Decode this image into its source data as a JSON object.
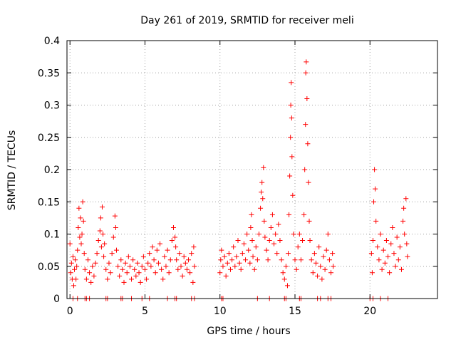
{
  "chart_data": {
    "type": "scatter",
    "title": "Day 261 of 2019, SRMTID for receiver meli",
    "xlabel": "GPS time / hours",
    "ylabel": "SRMTID / TECUs",
    "xlim": [
      -0.2,
      24.5
    ],
    "ylim": [
      0,
      0.4
    ],
    "xticks": [
      0,
      5,
      10,
      15,
      20
    ],
    "xtick_labels": [
      "0",
      "5",
      "10",
      "15",
      "20"
    ],
    "yticks": [
      0,
      0.05,
      0.1,
      0.15,
      0.2,
      0.25,
      0.3,
      0.35,
      0.4
    ],
    "ytick_labels": [
      "0",
      "0.05",
      "0.1",
      "0.15",
      "0.2",
      "0.25",
      "0.3",
      "0.35",
      "0.4"
    ],
    "grid": true,
    "marker": "plus",
    "colors": {
      "series": "#ff0000",
      "grid": "#a0a0a0",
      "axis": "#000000"
    },
    "series": [
      {
        "name": "SRMTID",
        "points": [
          [
            0.0,
            0.085
          ],
          [
            0.05,
            0.04
          ],
          [
            0.1,
            0.055
          ],
          [
            0.15,
            0.03
          ],
          [
            0.2,
            0.065
          ],
          [
            0.25,
            0.02
          ],
          [
            0.3,
            0.045
          ],
          [
            0.35,
            0.06
          ],
          [
            0.4,
            0.03
          ],
          [
            0.45,
            0.05
          ],
          [
            0.5,
            0.075
          ],
          [
            0.55,
            0.11
          ],
          [
            0.6,
            0.14
          ],
          [
            0.65,
            0.095
          ],
          [
            0.7,
            0.125
          ],
          [
            0.75,
            0.085
          ],
          [
            0.8,
            0.1
          ],
          [
            0.85,
            0.15
          ],
          [
            0.9,
            0.12
          ],
          [
            0.95,
            0.07
          ],
          [
            1.0,
            0.045
          ],
          [
            1.1,
            0.03
          ],
          [
            1.2,
            0.06
          ],
          [
            1.3,
            0.04
          ],
          [
            1.4,
            0.025
          ],
          [
            1.5,
            0.05
          ],
          [
            1.6,
            0.035
          ],
          [
            1.7,
            0.055
          ],
          [
            1.8,
            0.07
          ],
          [
            1.9,
            0.09
          ],
          [
            2.0,
            0.105
          ],
          [
            2.05,
            0.125
          ],
          [
            2.1,
            0.08
          ],
          [
            2.15,
            0.142
          ],
          [
            2.2,
            0.1
          ],
          [
            2.25,
            0.065
          ],
          [
            2.3,
            0.085
          ],
          [
            2.4,
            0.045
          ],
          [
            2.5,
            0.03
          ],
          [
            2.6,
            0.055
          ],
          [
            2.7,
            0.04
          ],
          [
            2.8,
            0.07
          ],
          [
            2.9,
            0.095
          ],
          [
            3.0,
            0.128
          ],
          [
            3.05,
            0.11
          ],
          [
            3.1,
            0.075
          ],
          [
            3.2,
            0.05
          ],
          [
            3.3,
            0.035
          ],
          [
            3.4,
            0.06
          ],
          [
            3.5,
            0.045
          ],
          [
            3.6,
            0.025
          ],
          [
            3.7,
            0.055
          ],
          [
            3.8,
            0.04
          ],
          [
            3.9,
            0.065
          ],
          [
            4.0,
            0.05
          ],
          [
            4.1,
            0.03
          ],
          [
            4.2,
            0.06
          ],
          [
            4.3,
            0.045
          ],
          [
            4.4,
            0.035
          ],
          [
            4.5,
            0.055
          ],
          [
            4.6,
            0.04
          ],
          [
            4.7,
            0.025
          ],
          [
            4.8,
            0.05
          ],
          [
            4.9,
            0.065
          ],
          [
            5.0,
            0.045
          ],
          [
            5.1,
            0.03
          ],
          [
            5.2,
            0.055
          ],
          [
            5.3,
            0.07
          ],
          [
            5.4,
            0.05
          ],
          [
            5.5,
            0.08
          ],
          [
            5.6,
            0.06
          ],
          [
            5.7,
            0.04
          ],
          [
            5.8,
            0.075
          ],
          [
            5.9,
            0.055
          ],
          [
            6.0,
            0.085
          ],
          [
            6.1,
            0.045
          ],
          [
            6.2,
            0.03
          ],
          [
            6.3,
            0.065
          ],
          [
            6.4,
            0.05
          ],
          [
            6.5,
            0.075
          ],
          [
            6.6,
            0.04
          ],
          [
            6.7,
            0.06
          ],
          [
            6.8,
            0.09
          ],
          [
            6.9,
            0.11
          ],
          [
            7.0,
            0.095
          ],
          [
            7.05,
            0.08
          ],
          [
            7.1,
            0.06
          ],
          [
            7.2,
            0.045
          ],
          [
            7.3,
            0.07
          ],
          [
            7.4,
            0.05
          ],
          [
            7.5,
            0.035
          ],
          [
            7.6,
            0.065
          ],
          [
            7.7,
            0.055
          ],
          [
            7.8,
            0.045
          ],
          [
            7.9,
            0.06
          ],
          [
            8.0,
            0.04
          ],
          [
            8.1,
            0.07
          ],
          [
            8.2,
            0.025
          ],
          [
            8.25,
            0.08
          ],
          [
            8.3,
            0.05
          ],
          [
            10.0,
            0.04
          ],
          [
            10.05,
            0.06
          ],
          [
            10.1,
            0.075
          ],
          [
            10.2,
            0.05
          ],
          [
            10.3,
            0.065
          ],
          [
            10.4,
            0.035
          ],
          [
            10.5,
            0.055
          ],
          [
            10.6,
            0.07
          ],
          [
            10.7,
            0.045
          ],
          [
            10.8,
            0.06
          ],
          [
            10.9,
            0.08
          ],
          [
            11.0,
            0.05
          ],
          [
            11.1,
            0.065
          ],
          [
            11.2,
            0.09
          ],
          [
            11.3,
            0.055
          ],
          [
            11.4,
            0.045
          ],
          [
            11.5,
            0.07
          ],
          [
            11.6,
            0.085
          ],
          [
            11.7,
            0.06
          ],
          [
            11.8,
            0.1
          ],
          [
            11.9,
            0.075
          ],
          [
            12.0,
            0.055
          ],
          [
            12.05,
            0.11
          ],
          [
            12.1,
            0.13
          ],
          [
            12.15,
            0.09
          ],
          [
            12.2,
            0.065
          ],
          [
            12.3,
            0.045
          ],
          [
            12.4,
            0.08
          ],
          [
            12.5,
            0.06
          ],
          [
            12.6,
            0.1
          ],
          [
            12.7,
            0.14
          ],
          [
            12.75,
            0.165
          ],
          [
            12.8,
            0.18
          ],
          [
            12.85,
            0.155
          ],
          [
            12.9,
            0.203
          ],
          [
            12.95,
            0.12
          ],
          [
            13.0,
            0.095
          ],
          [
            13.1,
            0.075
          ],
          [
            13.2,
            0.06
          ],
          [
            13.3,
            0.09
          ],
          [
            13.4,
            0.11
          ],
          [
            13.5,
            0.13
          ],
          [
            13.6,
            0.085
          ],
          [
            13.7,
            0.1
          ],
          [
            13.8,
            0.07
          ],
          [
            13.9,
            0.115
          ],
          [
            14.0,
            0.09
          ],
          [
            14.1,
            0.06
          ],
          [
            14.2,
            0.04
          ],
          [
            14.3,
            0.03
          ],
          [
            14.4,
            0.05
          ],
          [
            14.5,
            0.02
          ],
          [
            14.55,
            0.07
          ],
          [
            14.6,
            0.13
          ],
          [
            14.65,
            0.19
          ],
          [
            14.7,
            0.25
          ],
          [
            14.72,
            0.3
          ],
          [
            14.75,
            0.335
          ],
          [
            14.78,
            0.28
          ],
          [
            14.8,
            0.22
          ],
          [
            14.85,
            0.16
          ],
          [
            14.9,
            0.1
          ],
          [
            15.0,
            0.06
          ],
          [
            15.1,
            0.045
          ],
          [
            15.2,
            0.08
          ],
          [
            15.3,
            0.1
          ],
          [
            15.4,
            0.06
          ],
          [
            15.5,
            0.09
          ],
          [
            15.6,
            0.13
          ],
          [
            15.65,
            0.2
          ],
          [
            15.7,
            0.27
          ],
          [
            15.72,
            0.35
          ],
          [
            15.75,
            0.367
          ],
          [
            15.8,
            0.31
          ],
          [
            15.85,
            0.24
          ],
          [
            15.9,
            0.18
          ],
          [
            15.95,
            0.12
          ],
          [
            16.0,
            0.09
          ],
          [
            16.1,
            0.06
          ],
          [
            16.2,
            0.04
          ],
          [
            16.3,
            0.07
          ],
          [
            16.4,
            0.055
          ],
          [
            16.5,
            0.035
          ],
          [
            16.6,
            0.08
          ],
          [
            16.7,
            0.05
          ],
          [
            16.8,
            0.03
          ],
          [
            16.9,
            0.065
          ],
          [
            17.0,
            0.045
          ],
          [
            17.1,
            0.075
          ],
          [
            17.2,
            0.1
          ],
          [
            17.3,
            0.06
          ],
          [
            17.4,
            0.04
          ],
          [
            17.5,
            0.07
          ],
          [
            17.55,
            0.05
          ],
          [
            20.1,
            0.07
          ],
          [
            20.15,
            0.04
          ],
          [
            20.2,
            0.09
          ],
          [
            20.25,
            0.15
          ],
          [
            20.3,
            0.2
          ],
          [
            20.35,
            0.17
          ],
          [
            20.4,
            0.12
          ],
          [
            20.5,
            0.08
          ],
          [
            20.6,
            0.06
          ],
          [
            20.7,
            0.1
          ],
          [
            20.8,
            0.045
          ],
          [
            20.9,
            0.075
          ],
          [
            21.0,
            0.055
          ],
          [
            21.1,
            0.09
          ],
          [
            21.2,
            0.065
          ],
          [
            21.3,
            0.04
          ],
          [
            21.4,
            0.085
          ],
          [
            21.5,
            0.11
          ],
          [
            21.6,
            0.07
          ],
          [
            21.7,
            0.05
          ],
          [
            21.8,
            0.095
          ],
          [
            21.9,
            0.06
          ],
          [
            22.0,
            0.08
          ],
          [
            22.1,
            0.045
          ],
          [
            22.2,
            0.12
          ],
          [
            22.25,
            0.14
          ],
          [
            22.3,
            0.1
          ],
          [
            22.4,
            0.155
          ],
          [
            22.45,
            0.085
          ],
          [
            22.5,
            0.065
          ]
        ]
      }
    ],
    "zero_markers_x": [
      0.2,
      0.5,
      1.0,
      1.1,
      1.3,
      2.4,
      2.5,
      3.4,
      3.5,
      4.1,
      4.8,
      5.3,
      6.5,
      7.0,
      7.1,
      8.1,
      8.3,
      10.1,
      10.2,
      12.5,
      13.3,
      14.3,
      14.4,
      15.3,
      15.4,
      16.5,
      16.7,
      17.2,
      17.4,
      20.0,
      20.2,
      20.7,
      21.2
    ]
  }
}
